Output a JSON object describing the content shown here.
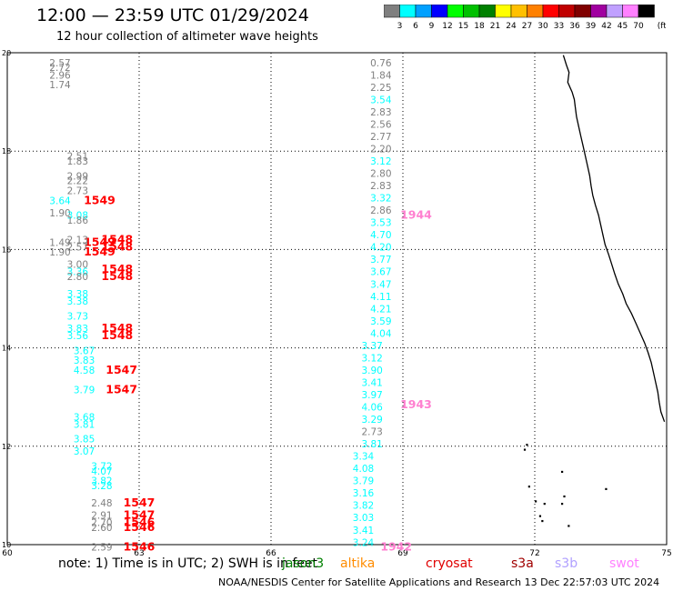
{
  "header": {
    "title": "12:00 — 23:59 UTC 01/29/2024",
    "subtitle": "12 hour collection of altimeter wave heights"
  },
  "colorbar": {
    "unit": "(ft)",
    "labels": [
      "3",
      "6",
      "9",
      "12",
      "15",
      "18",
      "21",
      "24",
      "27",
      "30",
      "33",
      "36",
      "39",
      "42",
      "45",
      "70"
    ],
    "colors": [
      "#7f7f7f",
      "#00ffff",
      "#00a0ff",
      "#0000ff",
      "#00ff00",
      "#00c000",
      "#008000",
      "#ffff00",
      "#ffc000",
      "#ff8000",
      "#ff0000",
      "#c00000",
      "#800000",
      "#a000a0",
      "#c0a0ff",
      "#ff80ff",
      "#000000"
    ]
  },
  "axes": {
    "lat_ticks": [
      "20",
      "18",
      "16",
      "14",
      "12",
      "10"
    ],
    "lon_ticks": [
      "60",
      "63",
      "66",
      "69",
      "72",
      "75"
    ]
  },
  "tracks": {
    "t1549": {
      "labels": [
        {
          "lat": 17.0,
          "text": "1549"
        },
        {
          "lat": 16.15,
          "text": "1549"
        },
        {
          "lat": 15.95,
          "text": "1549"
        }
      ],
      "heights": [
        {
          "lat": 19.8,
          "text": "2.57",
          "color": "#7f7f7f"
        },
        {
          "lat": 19.7,
          "text": "2.72",
          "color": "#7f7f7f"
        },
        {
          "lat": 19.55,
          "text": "2.96",
          "color": "#7f7f7f"
        },
        {
          "lat": 19.35,
          "text": "1.74",
          "color": "#7f7f7f"
        },
        {
          "lat": 17.0,
          "text": "3.64",
          "color": "#00ffff"
        },
        {
          "lat": 16.75,
          "text": "1.90",
          "color": "#7f7f7f"
        },
        {
          "lat": 16.15,
          "text": "1.49",
          "color": "#7f7f7f"
        },
        {
          "lat": 15.95,
          "text": "1.90",
          "color": "#7f7f7f"
        }
      ]
    },
    "t1548": {
      "labels": [
        {
          "lat": 16.2,
          "text": "1548"
        },
        {
          "lat": 16.05,
          "text": "1548"
        },
        {
          "lat": 15.6,
          "text": "1548"
        },
        {
          "lat": 15.45,
          "text": "1548"
        },
        {
          "lat": 14.4,
          "text": "1548"
        },
        {
          "lat": 14.25,
          "text": "1548"
        }
      ],
      "heights": [
        {
          "lat": 17.9,
          "text": "2.51",
          "color": "#7f7f7f"
        },
        {
          "lat": 17.8,
          "text": "1.83",
          "color": "#7f7f7f"
        },
        {
          "lat": 17.5,
          "text": "2.99",
          "color": "#7f7f7f"
        },
        {
          "lat": 17.4,
          "text": "2.22",
          "color": "#7f7f7f"
        },
        {
          "lat": 17.2,
          "text": "2.73",
          "color": "#7f7f7f"
        },
        {
          "lat": 16.7,
          "text": "3.08",
          "color": "#00ffff"
        },
        {
          "lat": 16.6,
          "text": "1.86",
          "color": "#7f7f7f"
        },
        {
          "lat": 16.2,
          "text": "2.13",
          "color": "#7f7f7f"
        },
        {
          "lat": 16.05,
          "text": "2.57",
          "color": "#7f7f7f"
        },
        {
          "lat": 15.7,
          "text": "3.00",
          "color": "#7f7f7f"
        },
        {
          "lat": 15.55,
          "text": "3.36",
          "color": "#00ffff"
        },
        {
          "lat": 15.45,
          "text": "2.80",
          "color": "#7f7f7f"
        },
        {
          "lat": 15.1,
          "text": "3.38",
          "color": "#00ffff"
        },
        {
          "lat": 14.95,
          "text": "3.38",
          "color": "#00ffff"
        },
        {
          "lat": 14.65,
          "text": "3.73",
          "color": "#00ffff"
        },
        {
          "lat": 14.4,
          "text": "3.83",
          "color": "#00ffff"
        },
        {
          "lat": 14.25,
          "text": "3.56",
          "color": "#00ffff"
        }
      ]
    },
    "t1547": {
      "labels": [
        {
          "lat": 13.55,
          "text": "1547"
        },
        {
          "lat": 13.15,
          "text": "1547"
        }
      ],
      "heights": [
        {
          "lat": 13.95,
          "text": "3.67",
          "color": "#00ffff"
        },
        {
          "lat": 13.75,
          "text": "3.83",
          "color": "#00ffff"
        },
        {
          "lat": 13.55,
          "text": "4.58",
          "color": "#00ffff"
        },
        {
          "lat": 13.15,
          "text": "3.79",
          "color": "#00ffff"
        },
        {
          "lat": 12.6,
          "text": "3.68",
          "color": "#00ffff"
        },
        {
          "lat": 12.45,
          "text": "3.81",
          "color": "#00ffff"
        },
        {
          "lat": 12.15,
          "text": "3.85",
          "color": "#00ffff"
        },
        {
          "lat": 11.9,
          "text": "3.07",
          "color": "#00ffff"
        }
      ]
    },
    "t1546": {
      "labels": [
        {
          "lat": 10.85,
          "text": "1547"
        },
        {
          "lat": 10.6,
          "text": "1547"
        },
        {
          "lat": 10.45,
          "text": "1546"
        },
        {
          "lat": 10.35,
          "text": "1546"
        },
        {
          "lat": 9.95,
          "text": "1546"
        }
      ],
      "heights": [
        {
          "lat": 11.6,
          "text": "3.72",
          "color": "#00ffff"
        },
        {
          "lat": 11.5,
          "text": "4.07",
          "color": "#00ffff"
        },
        {
          "lat": 11.3,
          "text": "3.82",
          "color": "#00ffff"
        },
        {
          "lat": 11.2,
          "text": "3.28",
          "color": "#00ffff"
        },
        {
          "lat": 10.85,
          "text": "2.48",
          "color": "#7f7f7f"
        },
        {
          "lat": 10.6,
          "text": "2.91",
          "color": "#7f7f7f"
        },
        {
          "lat": 10.45,
          "text": "2.70",
          "color": "#7f7f7f"
        },
        {
          "lat": 10.35,
          "text": "2.60",
          "color": "#7f7f7f"
        },
        {
          "lat": 9.95,
          "text": "2.59",
          "color": "#7f7f7f"
        }
      ]
    },
    "t1944": {
      "labels": [
        {
          "lat": 16.7,
          "text": "1944"
        }
      ],
      "heights": [
        {
          "lat": 19.8,
          "text": "0.76",
          "color": "#7f7f7f"
        },
        {
          "lat": 19.55,
          "text": "1.84",
          "color": "#7f7f7f"
        },
        {
          "lat": 19.3,
          "text": "2.25",
          "color": "#7f7f7f"
        },
        {
          "lat": 19.05,
          "text": "3.54",
          "color": "#00ffff"
        },
        {
          "lat": 18.8,
          "text": "2.83",
          "color": "#7f7f7f"
        },
        {
          "lat": 18.55,
          "text": "2.56",
          "color": "#7f7f7f"
        },
        {
          "lat": 18.3,
          "text": "2.77",
          "color": "#7f7f7f"
        },
        {
          "lat": 18.05,
          "text": "2.20",
          "color": "#7f7f7f"
        },
        {
          "lat": 17.8,
          "text": "3.12",
          "color": "#00ffff"
        },
        {
          "lat": 17.55,
          "text": "2.80",
          "color": "#7f7f7f"
        },
        {
          "lat": 17.3,
          "text": "2.83",
          "color": "#7f7f7f"
        },
        {
          "lat": 17.05,
          "text": "3.32",
          "color": "#00ffff"
        },
        {
          "lat": 16.8,
          "text": "2.86",
          "color": "#7f7f7f"
        },
        {
          "lat": 16.55,
          "text": "3.53",
          "color": "#00ffff"
        },
        {
          "lat": 16.3,
          "text": "4.70",
          "color": "#00ffff"
        },
        {
          "lat": 16.05,
          "text": "4.20",
          "color": "#00ffff"
        },
        {
          "lat": 15.8,
          "text": "3.77",
          "color": "#00ffff"
        },
        {
          "lat": 15.55,
          "text": "3.67",
          "color": "#00ffff"
        },
        {
          "lat": 15.3,
          "text": "3.47",
          "color": "#00ffff"
        },
        {
          "lat": 15.05,
          "text": "4.11",
          "color": "#00ffff"
        },
        {
          "lat": 14.8,
          "text": "4.21",
          "color": "#00ffff"
        },
        {
          "lat": 14.55,
          "text": "3.59",
          "color": "#00ffff"
        },
        {
          "lat": 14.3,
          "text": "4.04",
          "color": "#00ffff"
        }
      ]
    },
    "t1943": {
      "labels": [
        {
          "lat": 12.85,
          "text": "1943"
        }
      ],
      "heights": [
        {
          "lat": 14.05,
          "text": "3.37",
          "color": "#00ffff"
        },
        {
          "lat": 13.8,
          "text": "3.12",
          "color": "#00ffff"
        },
        {
          "lat": 13.55,
          "text": "3.90",
          "color": "#00ffff"
        },
        {
          "lat": 13.3,
          "text": "3.41",
          "color": "#00ffff"
        },
        {
          "lat": 13.05,
          "text": "3.97",
          "color": "#00ffff"
        },
        {
          "lat": 12.8,
          "text": "4.06",
          "color": "#00ffff"
        },
        {
          "lat": 12.55,
          "text": "3.29",
          "color": "#00ffff"
        },
        {
          "lat": 12.3,
          "text": "2.73",
          "color": "#7f7f7f"
        },
        {
          "lat": 12.05,
          "text": "3.81",
          "color": "#00ffff"
        }
      ]
    },
    "t1942": {
      "labels": [
        {
          "lat": 9.95,
          "text": "1942"
        }
      ],
      "heights": [
        {
          "lat": 11.8,
          "text": "3.34",
          "color": "#00ffff"
        },
        {
          "lat": 11.55,
          "text": "4.08",
          "color": "#00ffff"
        },
        {
          "lat": 11.3,
          "text": "3.79",
          "color": "#00ffff"
        },
        {
          "lat": 11.05,
          "text": "3.16",
          "color": "#00ffff"
        },
        {
          "lat": 10.8,
          "text": "3.82",
          "color": "#00ffff"
        },
        {
          "lat": 10.55,
          "text": "3.03",
          "color": "#00ffff"
        },
        {
          "lat": 10.3,
          "text": "3.41",
          "color": "#00ffff"
        },
        {
          "lat": 10.05,
          "text": "3.24",
          "color": "#00ffff"
        }
      ]
    }
  },
  "track_colors": {
    "1549": "#ff0000",
    "1548": "#ff0000",
    "1547": "#ff0000",
    "1546": "#ff0000",
    "1944": "#ff80d0",
    "1943": "#ff80d0",
    "1942": "#ff80d0"
  },
  "note": "note: 1) Time is in UTC; 2) SWH is in feet",
  "satellites": [
    {
      "name": "jason3",
      "color": "#008000"
    },
    {
      "name": "altika",
      "color": "#ff8c00"
    },
    {
      "name": "cryosat",
      "color": "#e00000"
    },
    {
      "name": "s3a",
      "color": "#a00000"
    },
    {
      "name": "s3b",
      "color": "#b0a0ff"
    },
    {
      "name": "swot",
      "color": "#ff80ff"
    }
  ],
  "footer": "NOAA/NESDIS Center for Satellite Applications and Research    13 Dec 22:57:03 UTC 2024"
}
